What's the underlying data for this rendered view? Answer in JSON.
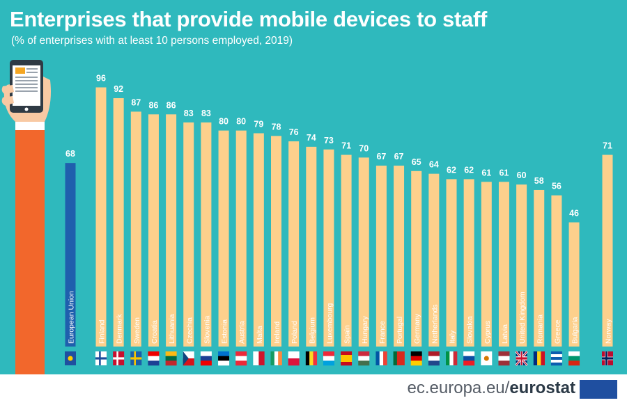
{
  "header": {
    "title": "Enterprises that provide mobile devices to staff",
    "subtitle": "(% of enterprises with at least 10 persons employed, 2019)"
  },
  "footer": {
    "url_prefix": "ec.europa.eu/",
    "url_brand": "eurostat"
  },
  "colors": {
    "background": "#2fb9bd",
    "bar": "#fdd08c",
    "eu_bar": "#1f5fad",
    "value_label": "#ffffff",
    "country_label": "#ffffff",
    "hand_sleeve": "#f2672c",
    "skin": "#f8c9a3"
  },
  "icons": [
    "smartphone-hand-icon",
    "eu-flag-icon",
    "country-flag-icons"
  ],
  "chart_data": {
    "type": "bar",
    "title": "Enterprises that provide mobile devices to staff",
    "subtitle": "(% of enterprises with at least 10 persons employed, 2019)",
    "ylim": [
      0,
      100
    ],
    "grid": false,
    "categories": [
      "European Union",
      "Finland",
      "Denmark",
      "Sweden",
      "Croatia",
      "Lithuania",
      "Czechia",
      "Slovenia",
      "Estonia",
      "Austria",
      "Malta",
      "Ireland",
      "Poland",
      "Belgium",
      "Luxembourg",
      "Spain",
      "Hungary",
      "France",
      "Portugal",
      "Germany",
      "Netherlands",
      "Italy",
      "Slovakia",
      "Cyprus",
      "Latvia",
      "United Kingdom",
      "Romania",
      "Greece",
      "Bulgaria",
      "Norway"
    ],
    "values": [
      68,
      96,
      92,
      87,
      86,
      86,
      83,
      83,
      80,
      80,
      79,
      78,
      76,
      74,
      73,
      71,
      70,
      67,
      67,
      65,
      64,
      62,
      62,
      61,
      61,
      60,
      58,
      56,
      46,
      71
    ]
  }
}
